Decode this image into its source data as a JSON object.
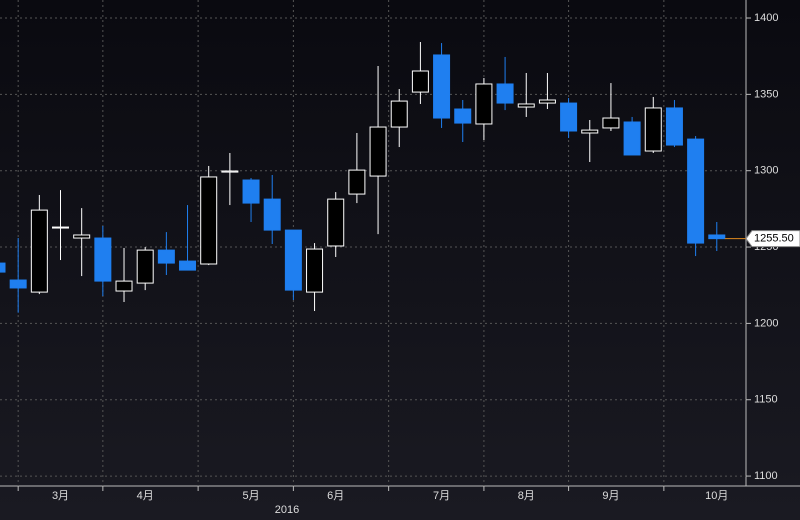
{
  "chart_data": {
    "type": "candlestick",
    "categories": [
      null,
      null,
      null,
      "3月",
      null,
      null,
      null,
      "4月",
      null,
      null,
      null,
      null,
      "5月",
      null,
      null,
      null,
      "6月",
      null,
      null,
      null,
      null,
      "7月",
      null,
      null,
      null,
      "8月",
      null,
      null,
      null,
      "9月",
      null,
      null,
      null,
      null,
      "10月"
    ],
    "x_sublabel": "2016",
    "open": [
      1239.5,
      1228.4,
      1220.5,
      1262.5,
      1255.9,
      1255.9,
      1221.2,
      1226.4,
      1248.0,
      1240.8,
      1238.9,
      1299.1,
      1293.9,
      1281.4,
      1261.1,
      1220.5,
      1250.7,
      1284.7,
      1296.5,
      1328.6,
      1351.5,
      1375.8,
      1340.4,
      1330.6,
      1356.8,
      1341.7,
      1344.3,
      1344.3,
      1324.7,
      1328.0,
      1331.9,
      1312.9,
      1341.1,
      1320.7,
      1257.9
    ],
    "high": [
      1241.5,
      1255.9,
      1284.1,
      1287.3,
      1275.5,
      1263.8,
      1249.4,
      1250.0,
      1259.8,
      1277.5,
      1303.1,
      1311.6,
      1295.2,
      1297.2,
      1261.1,
      1252.6,
      1286.0,
      1324.7,
      1368.6,
      1353.5,
      1384.3,
      1383.6,
      1346.3,
      1360.7,
      1374.5,
      1364.0,
      1364.0,
      1347.6,
      1333.2,
      1357.4,
      1335.2,
      1348.3,
      1346.3,
      1322.7,
      1266.4
    ],
    "low": [
      1232.0,
      1207.0,
      1219.2,
      1241.5,
      1231.0,
      1217.9,
      1214.0,
      1221.8,
      1231.7,
      1234.9,
      1238.2,
      1277.5,
      1266.4,
      1252.0,
      1215.3,
      1208.1,
      1243.5,
      1278.8,
      1258.5,
      1315.5,
      1343.7,
      1328.0,
      1318.8,
      1320.1,
      1339.7,
      1335.2,
      1340.4,
      1321.4,
      1305.7,
      1326.0,
      1310.3,
      1311.6,
      1315.5,
      1244.1,
      1247.4
    ],
    "close": [
      1233.6,
      1223.2,
      1274.2,
      1263.1,
      1257.9,
      1227.7,
      1227.7,
      1248.0,
      1239.5,
      1234.9,
      1295.9,
      1299.8,
      1278.8,
      1261.1,
      1221.8,
      1248.7,
      1281.4,
      1300.4,
      1328.6,
      1345.6,
      1365.3,
      1334.5,
      1331.2,
      1356.8,
      1344.3,
      1343.7,
      1346.3,
      1326.0,
      1326.6,
      1334.5,
      1310.3,
      1341.1,
      1316.8,
      1252.6,
      1255.5
    ],
    "up_color": "#ffffff",
    "down_color": "#1f7ff0",
    "last_price": {
      "value": 1255.5,
      "label": "1255.50"
    },
    "last_price_color": "#e08a1e",
    "ylim": [
      1093.5,
      1411.8
    ],
    "yticks": [
      1100,
      1150,
      1200,
      1250,
      1300,
      1350,
      1400
    ],
    "grid": true
  }
}
